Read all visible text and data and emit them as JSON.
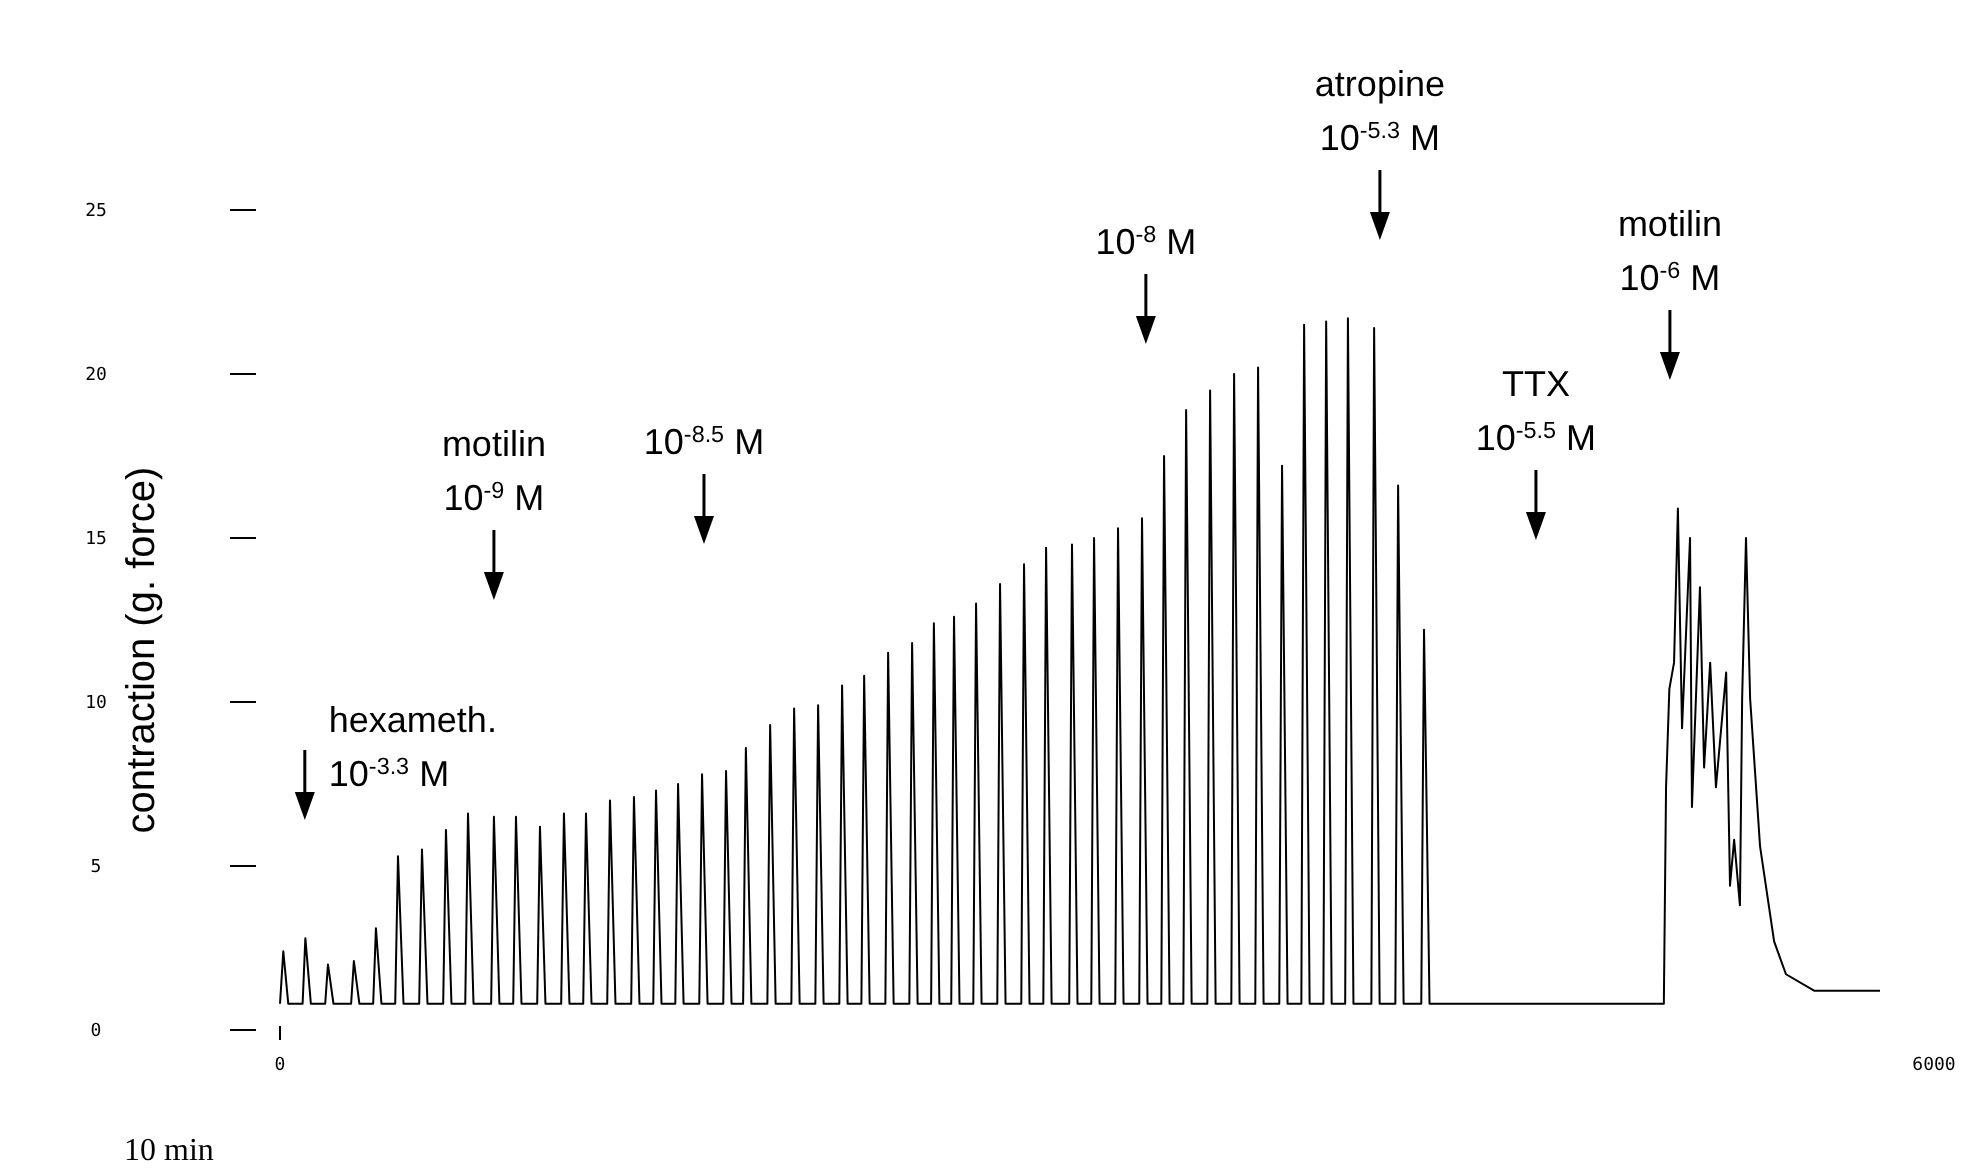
{
  "chart_data": {
    "type": "line",
    "ylabel": "contraction (g. force)",
    "xlim": [
      0,
      6000
    ],
    "xticks": [
      0,
      6000
    ],
    "ylim": [
      0,
      25
    ],
    "yticks": [
      0,
      5,
      10,
      15,
      20,
      25
    ],
    "grid": false,
    "marker": "none",
    "line_style": "solid",
    "series": [
      {
        "color": "#000000",
        "x": [
          0,
          12,
          30,
          82,
          92,
          112,
          164,
          174,
          194,
          258,
          268,
          288,
          338,
          348,
          368,
          418,
          428,
          448,
          505,
          515,
          535,
          592,
          602,
          622,
          672,
          682,
          702,
          766,
          776,
          796,
          846,
          856,
          876,
          933,
          943,
          963,
          1020,
          1030,
          1050,
          1100,
          1110,
          1130,
          1187,
          1197,
          1217,
          1274,
          1284,
          1304,
          1354,
          1364,
          1384,
          1434,
          1444,
          1464,
          1521,
          1531,
          1551,
          1608,
          1618,
          1638,
          1680,
          1690,
          1710,
          1768,
          1778,
          1798,
          1855,
          1865,
          1885,
          1942,
          1952,
          1972,
          2029,
          2039,
          2059,
          2109,
          2119,
          2139,
          2196,
          2206,
          2226,
          2283,
          2293,
          2313,
          2362,
          2372,
          2392,
          2435,
          2445,
          2465,
          2515,
          2525,
          2545,
          2602,
          2612,
          2632,
          2689,
          2699,
          2719,
          2769,
          2779,
          2799,
          2863,
          2873,
          2893,
          2943,
          2953,
          2973,
          3030,
          3040,
          3060,
          3117,
          3127,
          3147,
          3197,
          3207,
          3227,
          3277,
          3287,
          3307,
          3364,
          3374,
          3394,
          3451,
          3461,
          3481,
          3538,
          3548,
          3568,
          3625,
          3635,
          3655,
          3705,
          3715,
          3735,
          3785,
          3795,
          3815,
          3864,
          3874,
          3894,
          3959,
          3969,
          3989,
          4046,
          4056,
          4076,
          4140,
          4150,
          4170,
          5020,
          5028,
          5040,
          5057,
          5071,
          5086,
          5115,
          5122,
          5151,
          5166,
          5188,
          5209,
          5246,
          5260,
          5275,
          5296,
          5304,
          5318,
          5333,
          5369,
          5420,
          5463,
          5565,
          5804
        ],
        "values": [
          0.8,
          2.4,
          0.8,
          0.8,
          2.8,
          0.8,
          0.8,
          2.0,
          0.8,
          0.8,
          2.1,
          0.8,
          0.8,
          3.1,
          0.8,
          0.8,
          5.3,
          0.8,
          0.8,
          5.5,
          0.8,
          0.8,
          6.1,
          0.8,
          0.8,
          6.6,
          0.8,
          0.8,
          6.5,
          0.8,
          0.8,
          6.5,
          0.8,
          0.8,
          6.2,
          0.8,
          0.8,
          6.6,
          0.8,
          0.8,
          6.6,
          0.8,
          0.8,
          7.0,
          0.8,
          0.8,
          7.1,
          0.8,
          0.8,
          7.3,
          0.8,
          0.8,
          7.5,
          0.8,
          0.8,
          7.8,
          0.8,
          0.8,
          7.9,
          0.8,
          0.8,
          8.6,
          0.8,
          0.8,
          9.3,
          0.8,
          0.8,
          9.8,
          0.8,
          0.8,
          9.9,
          0.8,
          0.8,
          10.5,
          0.8,
          0.8,
          10.8,
          0.8,
          0.8,
          11.5,
          0.8,
          0.8,
          11.8,
          0.8,
          0.8,
          12.4,
          0.8,
          0.8,
          12.6,
          0.8,
          0.8,
          13.0,
          0.8,
          0.8,
          13.6,
          0.8,
          0.8,
          14.2,
          0.8,
          0.8,
          14.7,
          0.8,
          0.8,
          14.8,
          0.8,
          0.8,
          15.0,
          0.8,
          0.8,
          15.3,
          0.8,
          0.8,
          15.6,
          0.8,
          0.8,
          17.5,
          0.8,
          0.8,
          18.9,
          0.8,
          0.8,
          19.5,
          0.8,
          0.8,
          20.0,
          0.8,
          0.8,
          20.2,
          0.8,
          0.8,
          17.2,
          0.8,
          0.8,
          21.5,
          0.8,
          0.8,
          21.6,
          0.8,
          0.8,
          21.7,
          0.8,
          0.8,
          21.4,
          0.8,
          0.8,
          16.6,
          0.8,
          0.8,
          12.2,
          0.8,
          0.8,
          7.4,
          10.4,
          11.2,
          15.9,
          9.2,
          15.0,
          6.8,
          13.5,
          8.0,
          11.2,
          7.4,
          10.9,
          4.4,
          5.8,
          3.8,
          10.1,
          15.0,
          10.1,
          5.6,
          2.7,
          1.7,
          1.2,
          1.2
        ]
      }
    ],
    "ref_lines": [
      {
        "axis": "x",
        "value": 90,
        "label": "hexameth.\n10$^{-3.3}$ M"
      },
      {
        "axis": "x",
        "value": 776,
        "label": "motilin\n10$^{-9}$ M"
      },
      {
        "axis": "x",
        "value": 1538,
        "label": "10$^{-8.5}$ M"
      },
      {
        "axis": "x",
        "value": 3141,
        "label": "10$^{-8}$ M"
      },
      {
        "axis": "x",
        "value": 3990,
        "label": "atropine\n10$^{-5.3}$ M"
      },
      {
        "axis": "x",
        "value": 4556,
        "label": "TTX\n10$^{-5.5}$ M"
      },
      {
        "axis": "x",
        "value": 5042,
        "label": "motilin\n10$^{-6}$ M"
      }
    ],
    "annotations": [
      "10 min"
    ]
  }
}
